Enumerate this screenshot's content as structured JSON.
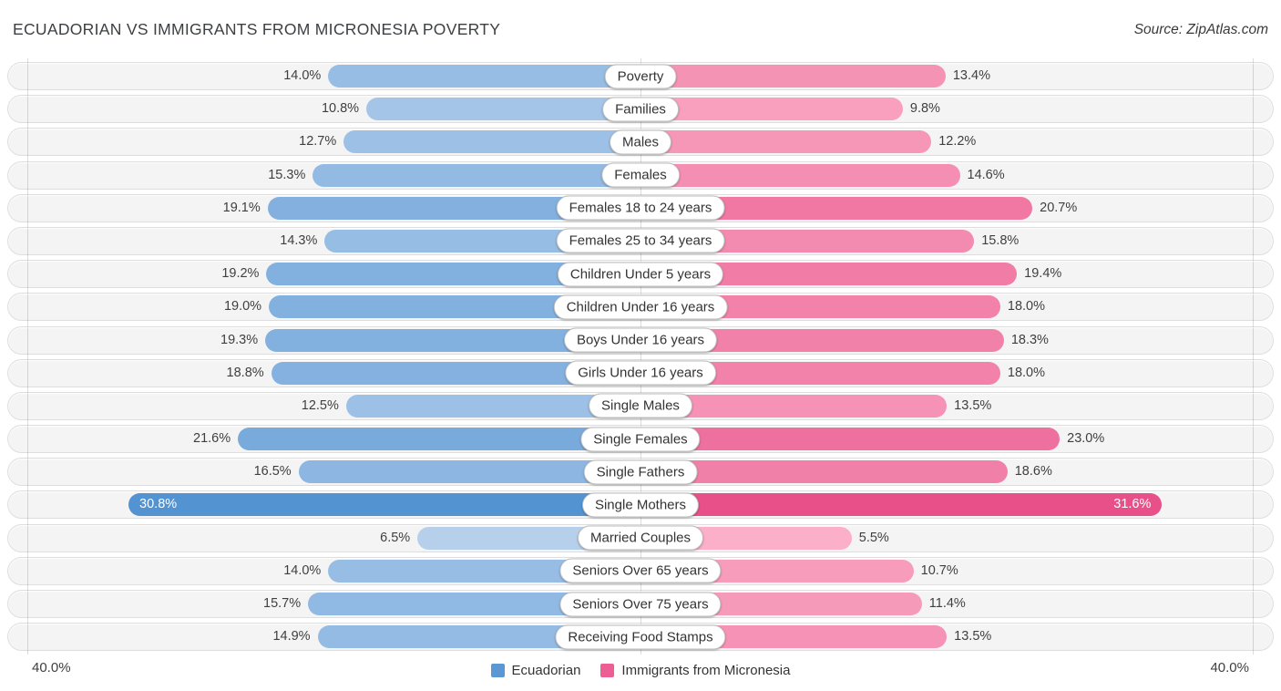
{
  "header": {
    "title": "ECUADORIAN VS IMMIGRANTS FROM MICRONESIA POVERTY",
    "source": "Source: ZipAtlas.com"
  },
  "footer": {
    "axis_left": "40.0%",
    "axis_right": "40.0%"
  },
  "legend": [
    {
      "label": "Ecuadorian",
      "color": "#5b97d5"
    },
    {
      "label": "Immigrants from Micronesia",
      "color": "#ed5f94"
    }
  ],
  "chart_data": {
    "type": "bar",
    "orientation": "diverging-horizontal",
    "title": "ECUADORIAN VS IMMIGRANTS FROM MICRONESIA POVERTY",
    "axis_max_percent": 40.0,
    "value_suffix": "%",
    "legend_position": "bottom-center",
    "grid": "vertical-edges-and-center",
    "categories": [
      "Poverty",
      "Families",
      "Males",
      "Females",
      "Females 18 to 24 years",
      "Females 25 to 34 years",
      "Children Under 5 years",
      "Children Under 16 years",
      "Boys Under 16 years",
      "Girls Under 16 years",
      "Single Males",
      "Single Females",
      "Single Fathers",
      "Single Mothers",
      "Married Couples",
      "Seniors Over 65 years",
      "Seniors Over 75 years",
      "Receiving Food Stamps"
    ],
    "series": [
      {
        "name": "Ecuadorian",
        "side": "left",
        "values": [
          14.0,
          10.8,
          12.7,
          15.3,
          19.1,
          14.3,
          19.2,
          19.0,
          19.3,
          18.8,
          12.5,
          21.6,
          16.5,
          30.8,
          6.5,
          14.0,
          15.7,
          14.9
        ]
      },
      {
        "name": "Immigrants from Micronesia",
        "side": "right",
        "values": [
          13.4,
          9.8,
          12.2,
          14.6,
          20.7,
          15.8,
          19.4,
          18.0,
          18.3,
          18.0,
          13.5,
          23.0,
          18.6,
          31.6,
          5.5,
          10.7,
          11.4,
          13.5
        ]
      }
    ],
    "palette": {
      "blue_light": "#bcd4ee",
      "blue_dark": "#4e90d1",
      "pink_light": "#fbb1c9",
      "pink_dark": "#e84f88"
    }
  }
}
